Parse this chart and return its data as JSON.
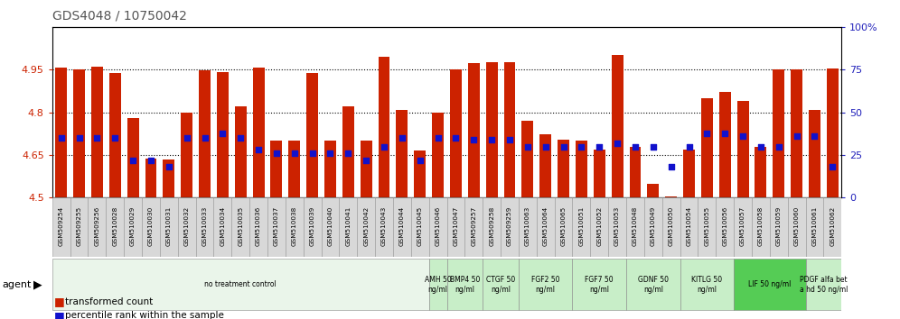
{
  "title": "GDS4048 / 10750042",
  "samples": [
    "GSM509254",
    "GSM509255",
    "GSM509256",
    "GSM510028",
    "GSM510029",
    "GSM510030",
    "GSM510031",
    "GSM510032",
    "GSM510033",
    "GSM510034",
    "GSM510035",
    "GSM510036",
    "GSM510037",
    "GSM510038",
    "GSM510039",
    "GSM510040",
    "GSM510041",
    "GSM510042",
    "GSM510043",
    "GSM510044",
    "GSM510045",
    "GSM510046",
    "GSM510047",
    "GSM509257",
    "GSM509258",
    "GSM509259",
    "GSM510063",
    "GSM510064",
    "GSM510065",
    "GSM510051",
    "GSM510052",
    "GSM510053",
    "GSM510048",
    "GSM510049",
    "GSM510050",
    "GSM510054",
    "GSM510055",
    "GSM510056",
    "GSM510057",
    "GSM510058",
    "GSM510059",
    "GSM510060",
    "GSM510061",
    "GSM510062"
  ],
  "bar_values": [
    4.957,
    4.95,
    4.962,
    4.938,
    4.78,
    4.638,
    4.633,
    4.8,
    4.948,
    4.942,
    4.82,
    4.958,
    4.7,
    4.7,
    4.938,
    4.7,
    4.82,
    4.7,
    4.995,
    4.808,
    4.665,
    4.8,
    4.95,
    4.975,
    4.978,
    4.978,
    4.77,
    4.722,
    4.705,
    4.7,
    4.67,
    5.002,
    4.68,
    4.55,
    4.505,
    4.67,
    4.85,
    4.872,
    4.84,
    4.68,
    4.95,
    4.952,
    4.808,
    4.955
  ],
  "percentile_ranks": [
    35,
    35,
    35,
    35,
    22,
    22,
    18,
    35,
    35,
    38,
    35,
    28,
    26,
    26,
    26,
    26,
    26,
    22,
    30,
    35,
    22,
    35,
    35,
    34,
    34,
    34,
    30,
    30,
    30,
    30,
    30,
    32,
    30,
    30,
    18,
    30,
    38,
    38,
    36,
    30,
    30,
    36,
    36,
    18
  ],
  "ylim_left": [
    4.5,
    5.1
  ],
  "ylim_right": [
    0,
    100
  ],
  "yticks_left": [
    4.5,
    4.65,
    4.8,
    4.95
  ],
  "ytick_labels_left": [
    "4.5",
    "4.65",
    "4.8",
    "4.95"
  ],
  "yticks_right": [
    0,
    25,
    50,
    75,
    100
  ],
  "ytick_labels_right": [
    "0",
    "25",
    "50",
    "75",
    "100%"
  ],
  "grid_at": [
    4.65,
    4.8,
    4.95
  ],
  "bar_color": "#cc2200",
  "dot_color": "#1111cc",
  "left_tick_color": "#cc2200",
  "right_tick_color": "#2222bb",
  "agent_groups": [
    {
      "label": "no treatment control",
      "start": 0,
      "end": 21,
      "color": "#eaf5ea"
    },
    {
      "label": "AMH 50\nng/ml",
      "start": 21,
      "end": 22,
      "color": "#c8eec8"
    },
    {
      "label": "BMP4 50\nng/ml",
      "start": 22,
      "end": 24,
      "color": "#c8eec8"
    },
    {
      "label": "CTGF 50\nng/ml",
      "start": 24,
      "end": 26,
      "color": "#c8eec8"
    },
    {
      "label": "FGF2 50\nng/ml",
      "start": 26,
      "end": 29,
      "color": "#c8eec8"
    },
    {
      "label": "FGF7 50\nng/ml",
      "start": 29,
      "end": 32,
      "color": "#c8eec8"
    },
    {
      "label": "GDNF 50\nng/ml",
      "start": 32,
      "end": 35,
      "color": "#c8eec8"
    },
    {
      "label": "KITLG 50\nng/ml",
      "start": 35,
      "end": 38,
      "color": "#c8eec8"
    },
    {
      "label": "LIF 50 ng/ml",
      "start": 38,
      "end": 42,
      "color": "#55cc55"
    },
    {
      "label": "PDGF alfa bet\na hd 50 ng/ml",
      "start": 42,
      "end": 44,
      "color": "#c8eec8"
    }
  ]
}
